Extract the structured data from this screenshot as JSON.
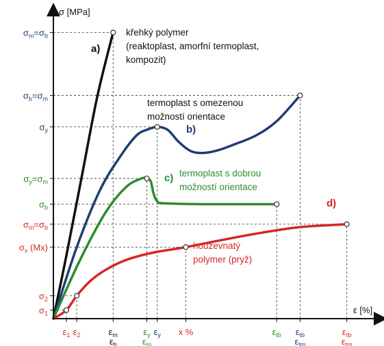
{
  "chart_data": {
    "type": "line",
    "title": "",
    "y_axis_label": "σ [MPa]",
    "x_axis_label": "ε [%]",
    "y_ticks": [
      {
        "label": "σm=σb",
        "color": "#1f3d73",
        "y": 100
      },
      {
        "label": "σb=σm",
        "color": "#1f3d73",
        "y": 78
      },
      {
        "label": "σy",
        "color": "#1f3d73",
        "y": 67
      },
      {
        "label": "σy=σm",
        "color": "#2e8b2e",
        "y": 49
      },
      {
        "label": "σb",
        "color": "#2e8b2e",
        "y": 40
      },
      {
        "label": "σm=σb",
        "color": "#d62728",
        "y": 33
      },
      {
        "label": "σx (Mx)",
        "color": "#d62728",
        "y": 25
      },
      {
        "label": "σ2",
        "color": "#d62728",
        "y": 8
      },
      {
        "label": "σ1",
        "color": "#d62728",
        "y": 3
      }
    ],
    "x_ticks": [
      {
        "label": "ε1",
        "color": "#d62728",
        "x": 5
      },
      {
        "label": "ε2",
        "color": "#d62728",
        "x": 9
      },
      {
        "label": "εm",
        "label2": "εb",
        "color": "#111111",
        "x": 23
      },
      {
        "label": "εy",
        "label2": "εm",
        "color": "#2e8b2e",
        "x": 36
      },
      {
        "label": "εy",
        "color": "#1f3d73",
        "x": 40
      },
      {
        "label": "x %",
        "color": "#d62728",
        "x": 51
      },
      {
        "label": "εtb",
        "color": "#2e8b2e",
        "x": 86
      },
      {
        "label": "εtb",
        "label2": "εtm",
        "color": "#1f3d73",
        "x": 95
      },
      {
        "label": "εtb",
        "label2": "εtm",
        "color": "#d62728",
        "x": 113
      }
    ],
    "series": [
      {
        "curve": "a)",
        "color": "#111111",
        "label_lines": [
          "křehký polymer",
          "(reaktoplast, amorfní termoplast,",
          "kompozit)"
        ],
        "points": [
          [
            0,
            0
          ],
          [
            5,
            22
          ],
          [
            11,
            50
          ],
          [
            17,
            78
          ],
          [
            23,
            100
          ]
        ],
        "markers": [
          [
            23,
            100
          ]
        ]
      },
      {
        "curve": "b)",
        "color": "#1f3d73",
        "label_lines": [
          "termoplast s omezenou",
          "možností orientace"
        ],
        "points": [
          [
            0,
            0
          ],
          [
            9,
            25
          ],
          [
            18,
            45
          ],
          [
            26,
            57
          ],
          [
            32,
            64
          ],
          [
            36,
            66
          ],
          [
            40,
            67
          ],
          [
            44,
            66
          ],
          [
            48,
            62
          ],
          [
            52,
            59
          ],
          [
            55,
            58
          ],
          [
            59,
            58
          ],
          [
            64,
            59
          ],
          [
            70,
            61
          ],
          [
            78,
            64
          ],
          [
            86,
            69
          ],
          [
            95,
            78
          ]
        ],
        "markers": [
          [
            40,
            67
          ],
          [
            95,
            78
          ]
        ]
      },
      {
        "curve": "c)",
        "color": "#2e8b2e",
        "label_lines": [
          "termoplast s dobrou",
          "možností orientace"
        ],
        "points": [
          [
            0,
            0
          ],
          [
            10,
            20
          ],
          [
            20,
            37
          ],
          [
            28,
            46
          ],
          [
            34,
            49
          ],
          [
            36,
            49
          ],
          [
            37.5,
            48
          ],
          [
            38.5,
            44
          ],
          [
            40,
            41
          ],
          [
            43,
            40.3
          ],
          [
            60,
            40
          ],
          [
            86,
            40
          ]
        ],
        "markers": [
          [
            36,
            49
          ],
          [
            86,
            40
          ]
        ]
      },
      {
        "curve": "d)",
        "color": "#d62728",
        "label_lines": [
          "houževnatý",
          "polymer (pryž)"
        ],
        "points": [
          [
            0,
            0
          ],
          [
            5,
            3
          ],
          [
            9,
            8
          ],
          [
            14,
            13
          ],
          [
            20,
            17
          ],
          [
            28,
            20.5
          ],
          [
            38,
            23
          ],
          [
            51,
            25
          ],
          [
            65,
            27.5
          ],
          [
            80,
            30
          ],
          [
            95,
            32
          ],
          [
            113,
            33
          ]
        ],
        "markers": [
          [
            5,
            3
          ],
          [
            9,
            8
          ],
          [
            51,
            25
          ],
          [
            113,
            33
          ]
        ]
      }
    ],
    "xlim": [
      0,
      126
    ],
    "ylim": [
      0,
      108
    ],
    "grid": false
  }
}
